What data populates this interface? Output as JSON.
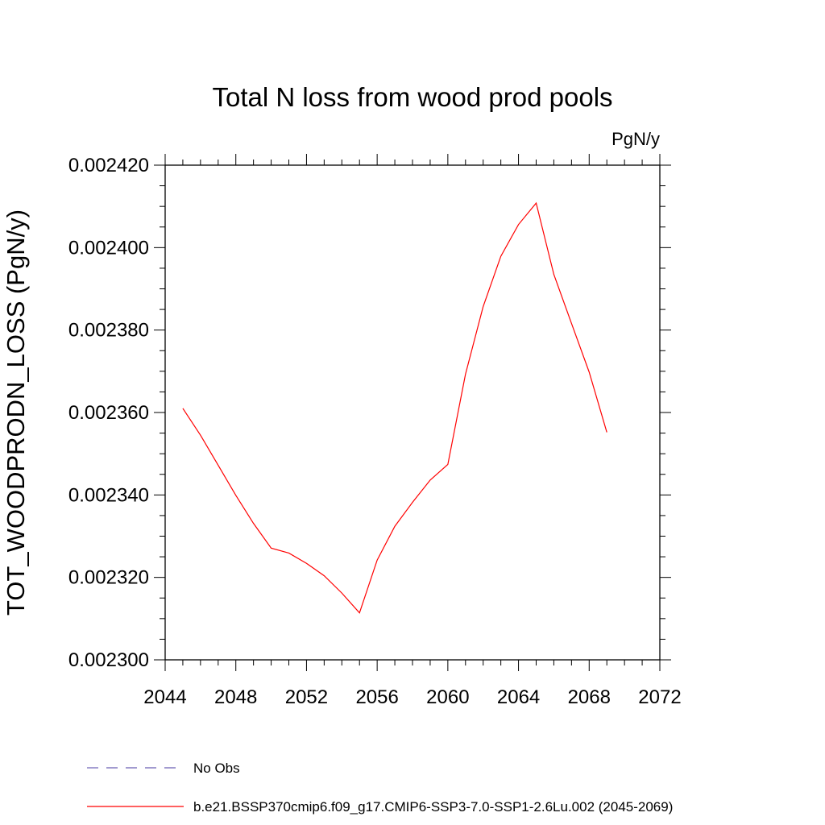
{
  "chart_data": {
    "type": "line",
    "title": "Total N loss from wood prod pools",
    "units_label": "PgN/y",
    "ylabel": "TOT_WOODPRODN_LOSS  (PgN/y)",
    "xlabel": "",
    "xlim": [
      2044,
      2072
    ],
    "ylim": [
      0.0023,
      0.00242
    ],
    "x_ticks": [
      "2044",
      "2048",
      "2052",
      "2056",
      "2060",
      "2064",
      "2068",
      "2072"
    ],
    "y_ticks": [
      "0.002300",
      "0.002320",
      "0.002340",
      "0.002360",
      "0.002380",
      "0.002400",
      "0.002420"
    ],
    "grid": false,
    "series": [
      {
        "name": "b.e21.BSSP370cmip6.f09_g17.CMIP6-SSP3-7.0-SSP1-2.6Lu.002 (2045-2069)",
        "color": "#ff0000",
        "line_style": "solid",
        "x": [
          2045,
          2046,
          2047,
          2048,
          2049,
          2050,
          2051,
          2052,
          2053,
          2054,
          2055,
          2056,
          2057,
          2058,
          2059,
          2060,
          2061,
          2062,
          2063,
          2064,
          2065,
          2066,
          2067,
          2068,
          2069
        ],
        "y": [
          0.002361,
          0.0023545,
          0.0023472,
          0.0023399,
          0.0023331,
          0.0023271,
          0.0023259,
          0.0023234,
          0.0023204,
          0.0023162,
          0.0023114,
          0.0023242,
          0.0023324,
          0.0023382,
          0.0023436,
          0.0023474,
          0.0023693,
          0.0023857,
          0.0023979,
          0.0024056,
          0.0024108,
          0.0023935,
          0.0023816,
          0.0023698,
          0.0023552
        ]
      }
    ],
    "legend": {
      "placement": "bottom",
      "entries": [
        {
          "label": "No Obs",
          "color": "#6b5fb5",
          "line_style": "dashed"
        },
        {
          "label": "b.e21.BSSP370cmip6.f09_g17.CMIP6-SSP3-7.0-SSP1-2.6Lu.002 (2045-2069)",
          "color": "#ff0000",
          "line_style": "solid"
        }
      ]
    }
  }
}
